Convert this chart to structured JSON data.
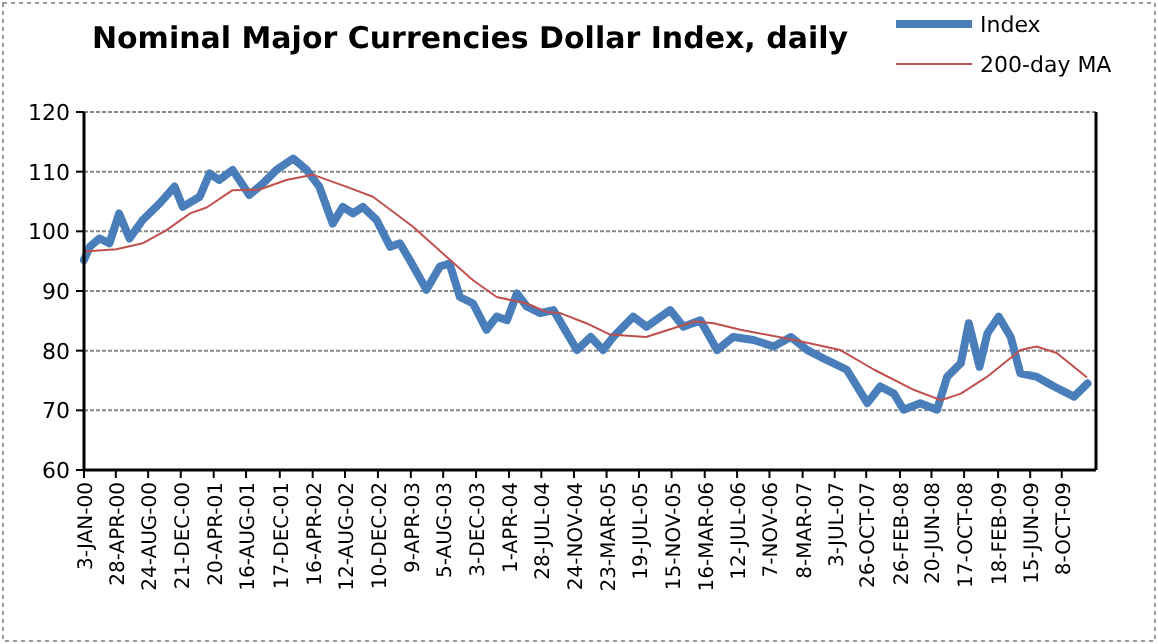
{
  "chart_data": {
    "type": "line",
    "title": "Nominal Major Currencies Dollar Index, daily",
    "legend": "top right",
    "grid": "y",
    "marker": "none",
    "line_style": "solid",
    "ylim": [
      60,
      120
    ],
    "yticks": [
      60,
      70,
      80,
      90,
      100,
      110,
      120
    ],
    "xlim": [
      "2000-01-03",
      "2010-02-10"
    ],
    "xticks": [
      {
        "value": "2000-01-03",
        "label": "3-JAN-00"
      },
      {
        "value": "2000-04-28",
        "label": "28-APR-00"
      },
      {
        "value": "2000-08-24",
        "label": "24-AUG-00"
      },
      {
        "value": "2000-12-21",
        "label": "21-DEC-00"
      },
      {
        "value": "2001-04-20",
        "label": "20-APR-01"
      },
      {
        "value": "2001-08-16",
        "label": "16-AUG-01"
      },
      {
        "value": "2001-12-17",
        "label": "17-DEC-01"
      },
      {
        "value": "2002-04-16",
        "label": "16-APR-02"
      },
      {
        "value": "2002-08-12",
        "label": "12-AUG-02"
      },
      {
        "value": "2002-12-10",
        "label": "10-DEC-02"
      },
      {
        "value": "2003-04-09",
        "label": "9-APR-03"
      },
      {
        "value": "2003-08-05",
        "label": "5-AUG-03"
      },
      {
        "value": "2003-12-03",
        "label": "3-DEC-03"
      },
      {
        "value": "2004-04-01",
        "label": "1-APR-04"
      },
      {
        "value": "2004-07-28",
        "label": "28-JUL-04"
      },
      {
        "value": "2004-11-24",
        "label": "24-NOV-04"
      },
      {
        "value": "2005-03-23",
        "label": "23-MAR-05"
      },
      {
        "value": "2005-07-19",
        "label": "19-JUL-05"
      },
      {
        "value": "2005-11-15",
        "label": "15-NOV-05"
      },
      {
        "value": "2006-03-16",
        "label": "16-MAR-06"
      },
      {
        "value": "2006-07-12",
        "label": "12-JUL-06"
      },
      {
        "value": "2006-11-07",
        "label": "7-NOV-06"
      },
      {
        "value": "2007-03-08",
        "label": "8-MAR-07"
      },
      {
        "value": "2007-07-03",
        "label": "3-JUL-07"
      },
      {
        "value": "2007-10-26",
        "label": "26-OCT-07"
      },
      {
        "value": "2008-02-26",
        "label": "26-FEB-08"
      },
      {
        "value": "2008-06-20",
        "label": "20-JUN-08"
      },
      {
        "value": "2008-10-17",
        "label": "17-OCT-08"
      },
      {
        "value": "2009-02-18",
        "label": "18-FEB-09"
      },
      {
        "value": "2009-06-15",
        "label": "15-JUN-09"
      },
      {
        "value": "2009-10-08",
        "label": "8-OCT-09"
      }
    ],
    "series": [
      {
        "name": "Index",
        "color": "#4a7ebb",
        "x": [
          "2000-01-03",
          "2000-01-24",
          "2000-02-28",
          "2000-04-05",
          "2000-05-10",
          "2000-06-17",
          "2000-08-04",
          "2000-10-05",
          "2000-11-28",
          "2000-12-28",
          "2001-02-28",
          "2001-04-05",
          "2001-05-10",
          "2001-06-28",
          "2001-08-28",
          "2001-10-16",
          "2001-12-05",
          "2002-02-04",
          "2002-03-25",
          "2002-05-10",
          "2002-06-28",
          "2002-08-04",
          "2002-09-10",
          "2002-10-16",
          "2002-12-05",
          "2003-01-24",
          "2003-02-28",
          "2003-04-05",
          "2003-06-05",
          "2003-07-24",
          "2003-08-28",
          "2003-10-05",
          "2003-11-22",
          "2004-01-10",
          "2004-02-16",
          "2004-03-25",
          "2004-04-30",
          "2004-06-05",
          "2004-07-24",
          "2004-09-10",
          "2004-10-30",
          "2004-12-05",
          "2005-01-24",
          "2005-03-10",
          "2005-04-16",
          "2005-06-28",
          "2005-08-16",
          "2005-11-10",
          "2005-12-28",
          "2006-02-28",
          "2006-04-30",
          "2006-06-28",
          "2006-09-10",
          "2006-11-22",
          "2007-01-24",
          "2007-03-25",
          "2007-06-05",
          "2007-08-16",
          "2007-10-30",
          "2007-12-16",
          "2008-02-04",
          "2008-03-10",
          "2008-05-10",
          "2008-07-10",
          "2008-08-16",
          "2008-10-05",
          "2008-11-03",
          "2008-12-12",
          "2009-01-10",
          "2009-02-20",
          "2009-04-05",
          "2009-05-10",
          "2009-07-10",
          "2009-09-10",
          "2009-11-22",
          "2010-01-10"
        ],
        "values": [
          95.2,
          97.4,
          98.8,
          98,
          103,
          98.8,
          101.9,
          104.7,
          107.5,
          104.1,
          105.8,
          109.7,
          108.6,
          110.3,
          106.1,
          108,
          110.3,
          112.2,
          110.3,
          107.5,
          101.3,
          104.1,
          103,
          104.1,
          101.9,
          97.4,
          98,
          95.2,
          90.2,
          94.1,
          94.6,
          89,
          87.9,
          83.5,
          85.7,
          85.1,
          89.6,
          87.4,
          86.3,
          86.8,
          82.9,
          80.1,
          82.3,
          80.1,
          82.3,
          85.7,
          84,
          86.8,
          84,
          85.1,
          80.1,
          82.3,
          81.8,
          80.7,
          82.3,
          80.1,
          78.4,
          76.8,
          71.2,
          74,
          72.8,
          70.1,
          71.2,
          70.1,
          75.6,
          77.9,
          84.6,
          77.3,
          82.9,
          85.7,
          82.3,
          76.2,
          75.6,
          74,
          72.3,
          74.5
        ]
      },
      {
        "name": "200-day MA",
        "color": "#c0504d",
        "x": [
          "2000-01-03",
          "2000-04-30",
          "2000-08-04",
          "2000-10-30",
          "2001-01-24",
          "2001-03-25",
          "2001-06-28",
          "2001-10-05",
          "2002-01-10",
          "2002-04-16",
          "2002-08-16",
          "2002-11-22",
          "2003-04-16",
          "2003-08-16",
          "2003-11-22",
          "2004-02-16",
          "2004-06-05",
          "2004-08-16",
          "2004-10-05",
          "2005-01-08",
          "2005-04-05",
          "2005-08-14",
          "2006-02-06",
          "2006-04-18",
          "2006-07-24",
          "2007-02-06",
          "2007-07-24",
          "2007-11-24",
          "2008-04-18",
          "2008-07-24",
          "2008-10-05",
          "2009-01-08",
          "2009-05-10",
          "2009-07-08",
          "2009-09-20",
          "2010-01-06"
        ],
        "values": [
          96.6,
          97,
          98,
          100.2,
          103,
          104,
          106.9,
          107,
          108.6,
          109.5,
          107.5,
          105.8,
          100.8,
          95.8,
          91.8,
          89,
          87.9,
          86.5,
          86.3,
          84.6,
          82.7,
          82.3,
          84.9,
          84.6,
          83.5,
          81.8,
          80.1,
          76.8,
          73.4,
          71.7,
          72.8,
          75.6,
          80.1,
          80.7,
          79.6,
          75.6
        ]
      }
    ]
  }
}
